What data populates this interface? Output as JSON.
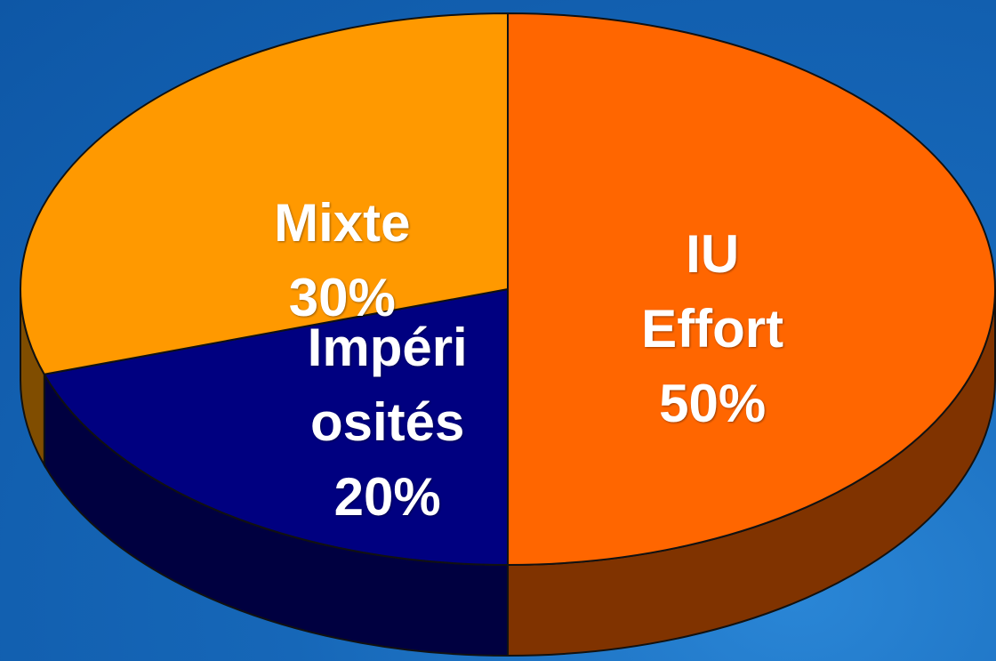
{
  "chart_data": {
    "type": "pie",
    "categories": [
      "IU\nEffort",
      "Impéri\nosités",
      "Mixte"
    ],
    "values": [
      50,
      20,
      30
    ],
    "value_labels": [
      "50%",
      "20%",
      "30%"
    ],
    "colors": [
      "#ff6600",
      "#000080",
      "#ff9900"
    ]
  }
}
